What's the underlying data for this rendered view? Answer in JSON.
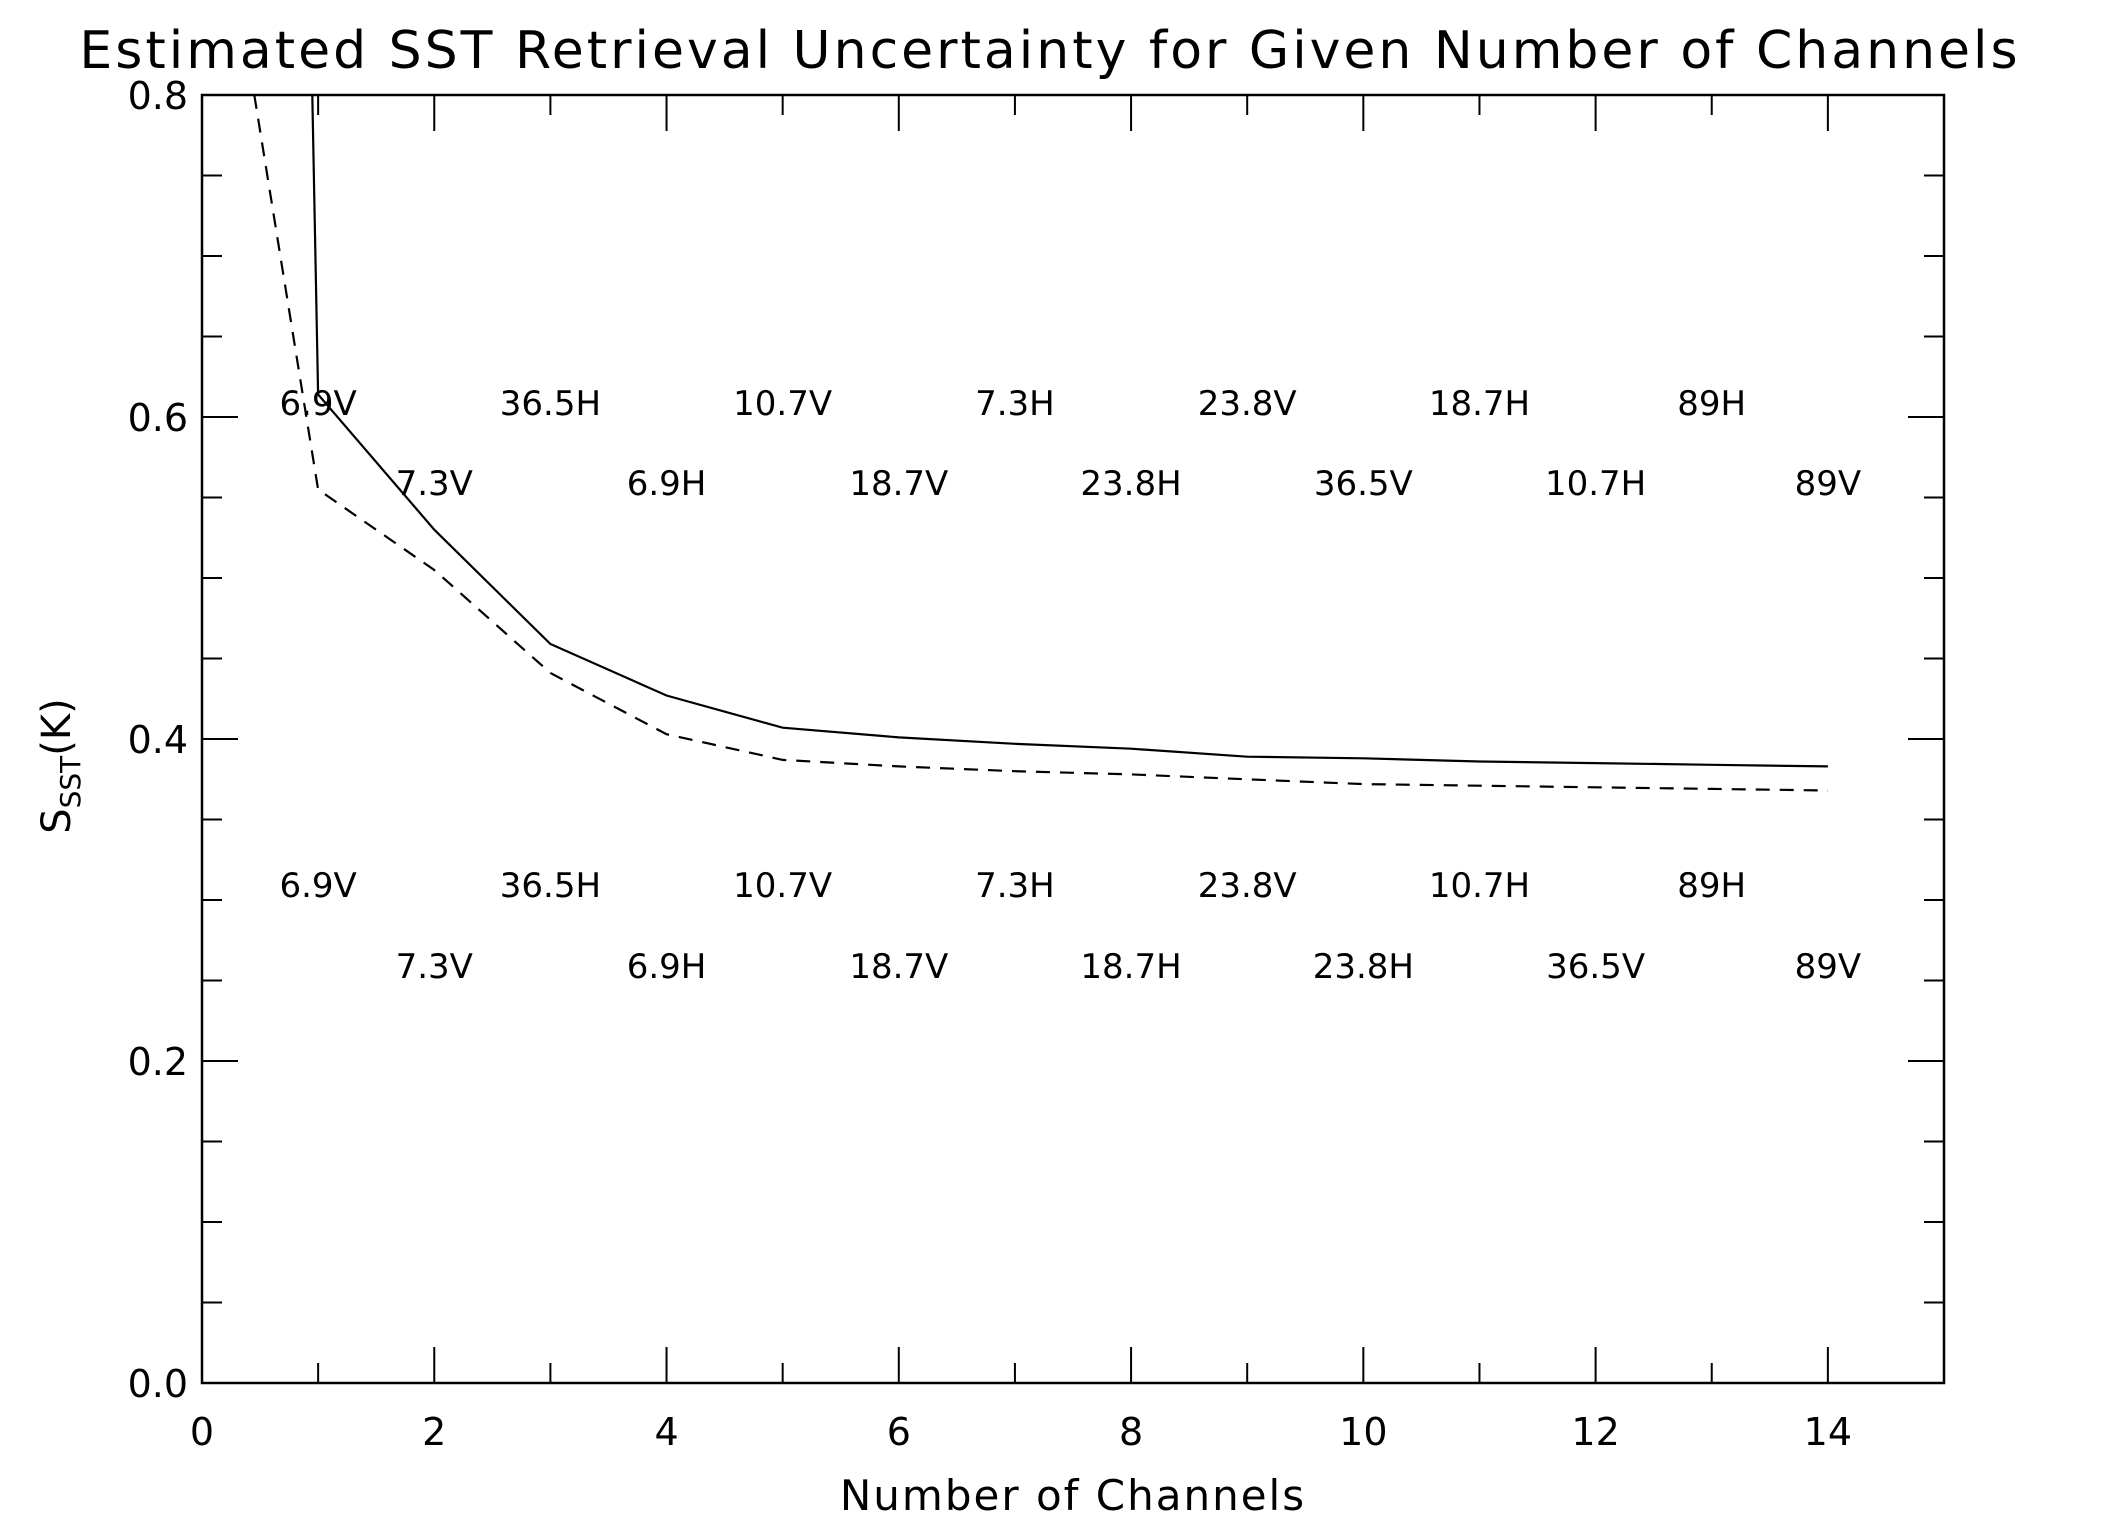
{
  "chart_data": {
    "type": "line",
    "title": "Estimated SST Retrieval Uncertainty for Given Number of Channels",
    "xlabel": "Number of Channels",
    "ylabel_main": "S",
    "ylabel_sub": "SST",
    "ylabel_unit": "(K)",
    "xlim": [
      0,
      15
    ],
    "ylim": [
      0.0,
      0.8
    ],
    "x_major_ticks": [
      0,
      2,
      4,
      6,
      8,
      10,
      12,
      14
    ],
    "x_tick_labels": [
      "0",
      "2",
      "4",
      "6",
      "8",
      "10",
      "12",
      "14"
    ],
    "x_minor_ticks": [
      1,
      3,
      5,
      7,
      9,
      11,
      13,
      15
    ],
    "y_major_ticks": [
      0.0,
      0.2,
      0.4,
      0.6,
      0.8
    ],
    "y_tick_labels": [
      "0.0",
      "0.2",
      "0.4",
      "0.6",
      "0.8"
    ],
    "y_minor_ticks": [
      0.05,
      0.1,
      0.15,
      0.25,
      0.3,
      0.35,
      0.45,
      0.5,
      0.55,
      0.65,
      0.7,
      0.75
    ],
    "series": [
      {
        "name": "solid",
        "style": "solid",
        "x": [
          0.95,
          1,
          2,
          3,
          4,
          5,
          6,
          7,
          8,
          9,
          10,
          11,
          12,
          13,
          14
        ],
        "y": [
          0.8,
          0.614,
          0.53,
          0.459,
          0.427,
          0.407,
          0.401,
          0.397,
          0.394,
          0.389,
          0.388,
          0.386,
          0.385,
          0.384,
          0.383
        ]
      },
      {
        "name": "dashed",
        "style": "dashed",
        "x": [
          0.45,
          1,
          2,
          3,
          4,
          5,
          6,
          7,
          8,
          9,
          10,
          11,
          12,
          13,
          14
        ],
        "y": [
          0.8,
          0.555,
          0.505,
          0.441,
          0.403,
          0.387,
          0.383,
          0.38,
          0.378,
          0.375,
          0.372,
          0.371,
          0.37,
          0.369,
          0.368
        ]
      }
    ],
    "annotations_upper": [
      {
        "x": 1,
        "row": 0,
        "text": "6.9V"
      },
      {
        "x": 2,
        "row": 1,
        "text": "7.3V"
      },
      {
        "x": 3,
        "row": 0,
        "text": "36.5H"
      },
      {
        "x": 4,
        "row": 1,
        "text": "6.9H"
      },
      {
        "x": 5,
        "row": 0,
        "text": "10.7V"
      },
      {
        "x": 6,
        "row": 1,
        "text": "18.7V"
      },
      {
        "x": 7,
        "row": 0,
        "text": "7.3H"
      },
      {
        "x": 8,
        "row": 1,
        "text": "23.8H"
      },
      {
        "x": 9,
        "row": 0,
        "text": "23.8V"
      },
      {
        "x": 10,
        "row": 1,
        "text": "36.5V"
      },
      {
        "x": 11,
        "row": 0,
        "text": "18.7H"
      },
      {
        "x": 12,
        "row": 1,
        "text": "10.7H"
      },
      {
        "x": 13,
        "row": 0,
        "text": "89H"
      },
      {
        "x": 14,
        "row": 1,
        "text": "89V"
      }
    ],
    "annotations_lower": [
      {
        "x": 1,
        "row": 0,
        "text": "6.9V"
      },
      {
        "x": 2,
        "row": 1,
        "text": "7.3V"
      },
      {
        "x": 3,
        "row": 0,
        "text": "36.5H"
      },
      {
        "x": 4,
        "row": 1,
        "text": "6.9H"
      },
      {
        "x": 5,
        "row": 0,
        "text": "10.7V"
      },
      {
        "x": 6,
        "row": 1,
        "text": "18.7V"
      },
      {
        "x": 7,
        "row": 0,
        "text": "7.3H"
      },
      {
        "x": 8,
        "row": 1,
        "text": "18.7H"
      },
      {
        "x": 9,
        "row": 0,
        "text": "23.8V"
      },
      {
        "x": 10,
        "row": 1,
        "text": "23.8H"
      },
      {
        "x": 11,
        "row": 0,
        "text": "10.7H"
      },
      {
        "x": 12,
        "row": 1,
        "text": "36.5V"
      },
      {
        "x": 13,
        "row": 0,
        "text": "89H"
      },
      {
        "x": 14,
        "row": 1,
        "text": "89V"
      }
    ]
  }
}
